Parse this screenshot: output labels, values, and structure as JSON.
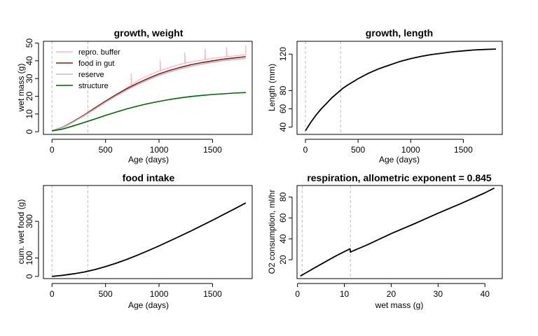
{
  "chart_data": [
    {
      "type": "line",
      "title": "growth, weight",
      "xlabel": "Age (days)",
      "ylabel": "wet mass (g)",
      "xlim": [
        -80,
        1870
      ],
      "ylim": [
        -1.5,
        51
      ],
      "xticks": [
        0,
        500,
        1000,
        1500
      ],
      "yticks": [
        0,
        10,
        20,
        30,
        40,
        50
      ],
      "vlines": [
        0,
        334
      ],
      "legend": {
        "position": "top-left",
        "frame": false
      },
      "series": [
        {
          "name": "repro. buffer",
          "color": "#ffb6c1",
          "width": 1.3,
          "points": [
            [
              0,
              0.5
            ],
            [
              100,
              2.5
            ],
            [
              200,
              5.8
            ],
            [
              300,
              9.4
            ],
            [
              400,
              13.4
            ],
            [
              500,
              17.3
            ],
            [
              600,
              21.1
            ],
            [
              700,
              24.8
            ],
            [
              740,
              26.5
            ],
            [
              740,
              32.8
            ],
            [
              745,
              26.3
            ],
            [
              800,
              28.8
            ],
            [
              900,
              31.8
            ],
            [
              1000,
              34.3
            ],
            [
              1010,
              34.6
            ],
            [
              1010,
              40.0
            ],
            [
              1015,
              34.6
            ],
            [
              1100,
              36.3
            ],
            [
              1200,
              38.0
            ],
            [
              1240,
              38.6
            ],
            [
              1240,
              44.5
            ],
            [
              1245,
              38.7
            ],
            [
              1300,
              39.4
            ],
            [
              1400,
              40.4
            ],
            [
              1430,
              40.8
            ],
            [
              1430,
              46.6
            ],
            [
              1435,
              40.8
            ],
            [
              1500,
              41.4
            ],
            [
              1600,
              42.1
            ],
            [
              1630,
              42.3
            ],
            [
              1630,
              47.5
            ],
            [
              1635,
              42.3
            ],
            [
              1700,
              42.8
            ],
            [
              1800,
              43.4
            ],
            [
              1810,
              43.5
            ],
            [
              1810,
              48.5
            ]
          ]
        },
        {
          "name": "food in gut",
          "color": "#8b1a1a",
          "width": 1.6,
          "points": [
            [
              0,
              0.5
            ],
            [
              100,
              2.5
            ],
            [
              200,
              5.8
            ],
            [
              300,
              9.4
            ],
            [
              400,
              13.4
            ],
            [
              500,
              17.2
            ],
            [
              600,
              20.9
            ],
            [
              700,
              24.3
            ],
            [
              800,
              27.4
            ],
            [
              900,
              30.1
            ],
            [
              1000,
              32.6
            ],
            [
              1100,
              34.6
            ],
            [
              1200,
              36.3
            ],
            [
              1300,
              37.8
            ],
            [
              1400,
              39.0
            ],
            [
              1500,
              40.0
            ],
            [
              1600,
              40.9
            ],
            [
              1700,
              41.6
            ],
            [
              1810,
              42.3
            ]
          ]
        },
        {
          "name": "reserve",
          "color": "#bebebe",
          "width": 1.6,
          "points": [
            [
              0,
              0.5
            ],
            [
              100,
              2.3
            ],
            [
              200,
              5.5
            ],
            [
              300,
              9.0
            ],
            [
              400,
              12.8
            ],
            [
              500,
              16.6
            ],
            [
              600,
              20.2
            ],
            [
              700,
              23.6
            ],
            [
              800,
              26.6
            ],
            [
              900,
              29.3
            ],
            [
              1000,
              31.7
            ],
            [
              1100,
              33.7
            ],
            [
              1200,
              35.4
            ],
            [
              1300,
              36.9
            ],
            [
              1400,
              38.1
            ],
            [
              1500,
              39.1
            ],
            [
              1600,
              40.0
            ],
            [
              1700,
              40.7
            ],
            [
              1810,
              41.3
            ]
          ]
        },
        {
          "name": "structure",
          "color": "#006400",
          "width": 1.6,
          "points": [
            [
              0,
              0.5
            ],
            [
              100,
              1.5
            ],
            [
              200,
              3.3
            ],
            [
              300,
              5.2
            ],
            [
              400,
              7.2
            ],
            [
              500,
              9.2
            ],
            [
              600,
              11.1
            ],
            [
              700,
              12.9
            ],
            [
              800,
              14.5
            ],
            [
              900,
              15.9
            ],
            [
              1000,
              17.1
            ],
            [
              1100,
              18.2
            ],
            [
              1200,
              19.1
            ],
            [
              1300,
              19.9
            ],
            [
              1400,
              20.5
            ],
            [
              1500,
              21.0
            ],
            [
              1600,
              21.4
            ],
            [
              1700,
              21.8
            ],
            [
              1810,
              22.1
            ]
          ]
        }
      ]
    },
    {
      "type": "line",
      "title": "growth, length",
      "xlabel": "Age (days)",
      "ylabel": "Length (mm)",
      "xlim": [
        -80,
        1870
      ],
      "ylim": [
        32,
        134
      ],
      "xticks": [
        0,
        500,
        1000,
        1500
      ],
      "yticks": [
        40,
        60,
        80,
        120
      ],
      "vlines": [
        0,
        334
      ],
      "series": [
        {
          "color": "#000000",
          "width": 1.8,
          "points": [
            [
              0,
              36
            ],
            [
              50,
              45
            ],
            [
              100,
              53
            ],
            [
              150,
              60
            ],
            [
              200,
              66
            ],
            [
              250,
              72
            ],
            [
              300,
              77
            ],
            [
              350,
              82
            ],
            [
              400,
              86
            ],
            [
              500,
              93
            ],
            [
              600,
              99
            ],
            [
              700,
              104
            ],
            [
              800,
              108
            ],
            [
              900,
              112
            ],
            [
              1000,
              115
            ],
            [
              1100,
              117.5
            ],
            [
              1200,
              119.5
            ],
            [
              1300,
              121
            ],
            [
              1400,
              122.5
            ],
            [
              1500,
              123.5
            ],
            [
              1600,
              124.5
            ],
            [
              1700,
              125
            ],
            [
              1810,
              125.5
            ]
          ]
        }
      ]
    },
    {
      "type": "line",
      "title": "food intake",
      "xlabel": "Age (days)",
      "ylabel": "cum. wet food (g)",
      "xlim": [
        -80,
        1870
      ],
      "ylim": [
        -12,
        495
      ],
      "xticks": [
        0,
        500,
        1000,
        1500
      ],
      "yticks": [
        0,
        100,
        300
      ],
      "vlines": [
        0,
        334
      ],
      "series": [
        {
          "color": "#000000",
          "width": 1.8,
          "points": [
            [
              0,
              0
            ],
            [
              100,
              6
            ],
            [
              200,
              14
            ],
            [
              300,
              24
            ],
            [
              400,
              37
            ],
            [
              500,
              53
            ],
            [
              600,
              72
            ],
            [
              700,
              93
            ],
            [
              800,
              116
            ],
            [
              900,
              141
            ],
            [
              1000,
              166
            ],
            [
              1100,
              193
            ],
            [
              1200,
              220
            ],
            [
              1300,
              248
            ],
            [
              1400,
              277
            ],
            [
              1500,
              306
            ],
            [
              1600,
              336
            ],
            [
              1700,
              366
            ],
            [
              1810,
              400
            ]
          ]
        }
      ]
    },
    {
      "type": "line",
      "title": "respiration, allometric exponent = 0.845",
      "xlabel": "wet mass (g)",
      "ylabel": "O2 consumption, ml/hr",
      "xlim": [
        -0.1,
        43.7
      ],
      "ylim": [
        2,
        91
      ],
      "xticks": [
        0,
        10,
        20,
        30,
        40
      ],
      "yticks": [
        20,
        40,
        60,
        80
      ],
      "vlines": [
        1,
        11.3
      ],
      "series": [
        {
          "color": "#000000",
          "width": 1.8,
          "points": [
            [
              0.6,
              4.5
            ],
            [
              2,
              8
            ],
            [
              4,
              13.2
            ],
            [
              6,
              18.2
            ],
            [
              8,
              23.2
            ],
            [
              10,
              27.8
            ],
            [
              11.2,
              30.5
            ],
            [
              11.3,
              27.3
            ],
            [
              12,
              28.8
            ],
            [
              15,
              34.5
            ],
            [
              20,
              45
            ],
            [
              25,
              54.5
            ],
            [
              30,
              64.5
            ],
            [
              35,
              74
            ],
            [
              40,
              84
            ],
            [
              42,
              88.5
            ]
          ]
        }
      ]
    }
  ]
}
